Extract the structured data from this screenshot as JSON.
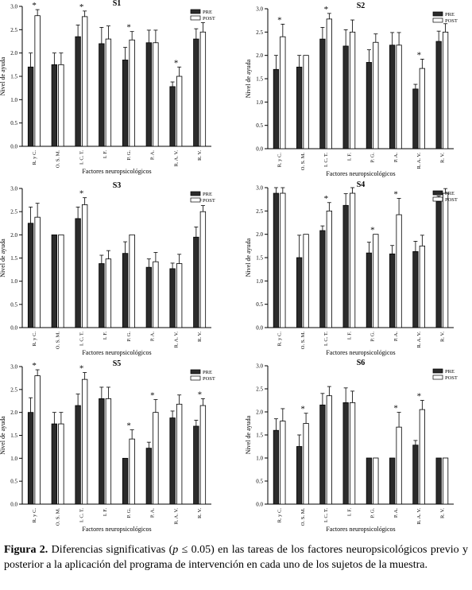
{
  "chart_data": [
    {
      "type": "bar",
      "title": "S1",
      "categories": [
        "R. y C.",
        "O. S. M.",
        "I. C. T.",
        "I. F.",
        "P. G.",
        "P. A.",
        "R. A. V.",
        "R. V."
      ],
      "series": [
        {
          "name": "PRE",
          "values": [
            1.7,
            1.75,
            2.35,
            2.2,
            1.85,
            2.22,
            1.28,
            2.3
          ],
          "errors": [
            0.3,
            0.25,
            0.25,
            0.35,
            0.27,
            0.27,
            0.1,
            0.22
          ]
        },
        {
          "name": "POST",
          "values": [
            2.8,
            1.75,
            2.78,
            2.3,
            2.28,
            2.22,
            1.5,
            2.45
          ],
          "errors": [
            0.13,
            0.25,
            0.12,
            0.28,
            0.18,
            0.27,
            0.2,
            0.2
          ]
        }
      ],
      "significant": [
        "R. y C.",
        "I. C. T.",
        "P. G.",
        "R. A. V."
      ],
      "ylabel": "Nivel de ayuda",
      "xlabel": "Factores neuropsicológicos",
      "ylim": [
        0,
        3
      ],
      "yticks": [
        "0.0",
        "0.5",
        "1.0",
        "1.5",
        "2.0",
        "2.5",
        "3.0"
      ],
      "legend": "top-right",
      "grid": false
    },
    {
      "type": "bar",
      "title": "S2",
      "categories": [
        "R. y C.",
        "O. S. M.",
        "I. C. T.",
        "I. F.",
        "P. G.",
        "P. A.",
        "R. A. V.",
        "R. V."
      ],
      "series": [
        {
          "name": "PRE",
          "values": [
            1.7,
            1.75,
            2.35,
            2.2,
            1.85,
            2.22,
            1.28,
            2.3
          ],
          "errors": [
            0.3,
            0.25,
            0.25,
            0.35,
            0.27,
            0.27,
            0.1,
            0.22
          ]
        },
        {
          "name": "POST",
          "values": [
            2.4,
            2.0,
            2.78,
            2.5,
            2.28,
            2.22,
            1.72,
            2.5
          ],
          "errors": [
            0.27,
            0.0,
            0.12,
            0.26,
            0.18,
            0.27,
            0.2,
            0.18
          ]
        }
      ],
      "significant": [
        "R. y C.",
        "I. C. T.",
        "R. A. V."
      ],
      "ylabel": "Nivel de ayuda",
      "xlabel": "Factores neuropsicológicos",
      "ylim": [
        0,
        3
      ],
      "yticks": [
        "0.0",
        "0.5",
        "1.0",
        "1.5",
        "2.0",
        "2.5",
        "3.0"
      ],
      "legend": "top-right",
      "grid": false
    },
    {
      "type": "bar",
      "title": "S3",
      "categories": [
        "R. y C.",
        "O. S. M.",
        "I. C. T.",
        "I. F.",
        "P. G.",
        "P. A.",
        "R. A. V.",
        "R. V."
      ],
      "series": [
        {
          "name": "PRE",
          "values": [
            2.25,
            2.0,
            2.35,
            1.38,
            1.6,
            1.3,
            1.27,
            1.95
          ],
          "errors": [
            0.35,
            0.0,
            0.25,
            0.18,
            0.25,
            0.18,
            0.12,
            0.22
          ]
        },
        {
          "name": "POST",
          "values": [
            2.38,
            2.0,
            2.65,
            1.48,
            2.0,
            1.42,
            1.38,
            2.5
          ],
          "errors": [
            0.3,
            0.0,
            0.15,
            0.18,
            0.0,
            0.2,
            0.2,
            0.13
          ]
        }
      ],
      "significant": [
        "I. C. T.",
        "R. V."
      ],
      "ylabel": "Nivel de ayuda",
      "xlabel": "Factores neuropsicológicos",
      "ylim": [
        0,
        3
      ],
      "yticks": [
        "0.0",
        "0.5",
        "1.0",
        "1.5",
        "2.0",
        "2.5",
        "3.0"
      ],
      "legend": "top-right",
      "grid": false
    },
    {
      "type": "bar",
      "title": "S4",
      "categories": [
        "R. y C.",
        "O. S. M.",
        "I. C. T.",
        "I. F.",
        "P. G.",
        "P. A.",
        "R. A. V.",
        "R. V."
      ],
      "series": [
        {
          "name": "PRE",
          "values": [
            2.88,
            1.5,
            2.08,
            2.62,
            1.6,
            1.58,
            1.63,
            2.7
          ],
          "errors": [
            0.12,
            0.48,
            0.1,
            0.25,
            0.23,
            0.18,
            0.22,
            0.12
          ]
        },
        {
          "name": "POST",
          "values": [
            2.88,
            2.0,
            2.5,
            2.88,
            2.0,
            2.42,
            1.75,
            2.88
          ],
          "errors": [
            0.12,
            0.0,
            0.18,
            0.12,
            0.0,
            0.35,
            0.23,
            0.1
          ]
        }
      ],
      "significant": [
        "I. C. T.",
        "P. G.",
        "P. A."
      ],
      "ylabel": "Nivel de ayuda",
      "xlabel": "Factores neuropsicológicos",
      "ylim": [
        0,
        3
      ],
      "yticks": [
        "0.0",
        "0.5",
        "1.0",
        "1.5",
        "2.0",
        "2.5",
        "3.0"
      ],
      "legend": "top-right",
      "grid": false
    },
    {
      "type": "bar",
      "title": "S5",
      "categories": [
        "R. y C.",
        "O. S. M.",
        "I. C. T.",
        "I. F.",
        "P. G.",
        "P. A.",
        "R. A. V.",
        "R. V."
      ],
      "series": [
        {
          "name": "PRE",
          "values": [
            2.0,
            1.75,
            2.15,
            2.3,
            1.0,
            1.22,
            1.88,
            1.7
          ],
          "errors": [
            0.32,
            0.25,
            0.25,
            0.25,
            0.0,
            0.13,
            0.15,
            0.13
          ]
        },
        {
          "name": "POST",
          "values": [
            2.8,
            1.75,
            2.72,
            2.3,
            1.42,
            2.0,
            2.18,
            2.15
          ],
          "errors": [
            0.13,
            0.25,
            0.15,
            0.25,
            0.2,
            0.28,
            0.2,
            0.15
          ]
        }
      ],
      "significant": [
        "R. y C.",
        "I. C. T.",
        "P. G.",
        "P. A.",
        "R. V."
      ],
      "ylabel": "Nivel de ayuda",
      "xlabel": "Factores neuropsicológicos",
      "ylim": [
        0,
        3
      ],
      "yticks": [
        "0.0",
        "0.5",
        "1.0",
        "1.5",
        "2.0",
        "2.5",
        "3.0"
      ],
      "legend": "top-right",
      "grid": false
    },
    {
      "type": "bar",
      "title": "S6",
      "categories": [
        "R. y C.",
        "O. S. M.",
        "I. C. T.",
        "I. F.",
        "P. G.",
        "P. A.",
        "R. A. V.",
        "R. V."
      ],
      "series": [
        {
          "name": "PRE",
          "values": [
            1.6,
            1.25,
            2.15,
            2.2,
            1.0,
            1.0,
            1.28,
            1.0
          ],
          "errors": [
            0.25,
            0.25,
            0.25,
            0.32,
            0.0,
            0.0,
            0.1,
            0.0
          ]
        },
        {
          "name": "POST",
          "values": [
            1.8,
            1.75,
            2.35,
            2.2,
            1.0,
            1.67,
            2.05,
            1.0
          ],
          "errors": [
            0.27,
            0.22,
            0.2,
            0.25,
            0.0,
            0.32,
            0.2,
            0.0
          ]
        }
      ],
      "significant": [
        "O. S. M.",
        "P. A.",
        "R. A. V."
      ],
      "ylabel": "Nivel de ayuda",
      "xlabel": "Factores neuropsicológicos",
      "ylim": [
        0,
        3
      ],
      "yticks": [
        "0.0",
        "0.5",
        "1.0",
        "1.5",
        "2.0",
        "2.5",
        "3.0"
      ],
      "legend": "top-right",
      "grid": false
    }
  ],
  "styles": {
    "pre_color": "#2b2b2b",
    "post_color": "#ffffff",
    "axis_color": "#000000"
  },
  "caption": {
    "label": "Figura 2.",
    "before_p": " Diferencias significativas (",
    "p_symbol": "p",
    "after_p": " ≤ 0.05) en las tareas de los factores neuropsicológicos previo y posterior a la aplicación del programa de intervención en cada uno de los sujetos de la muestra."
  }
}
